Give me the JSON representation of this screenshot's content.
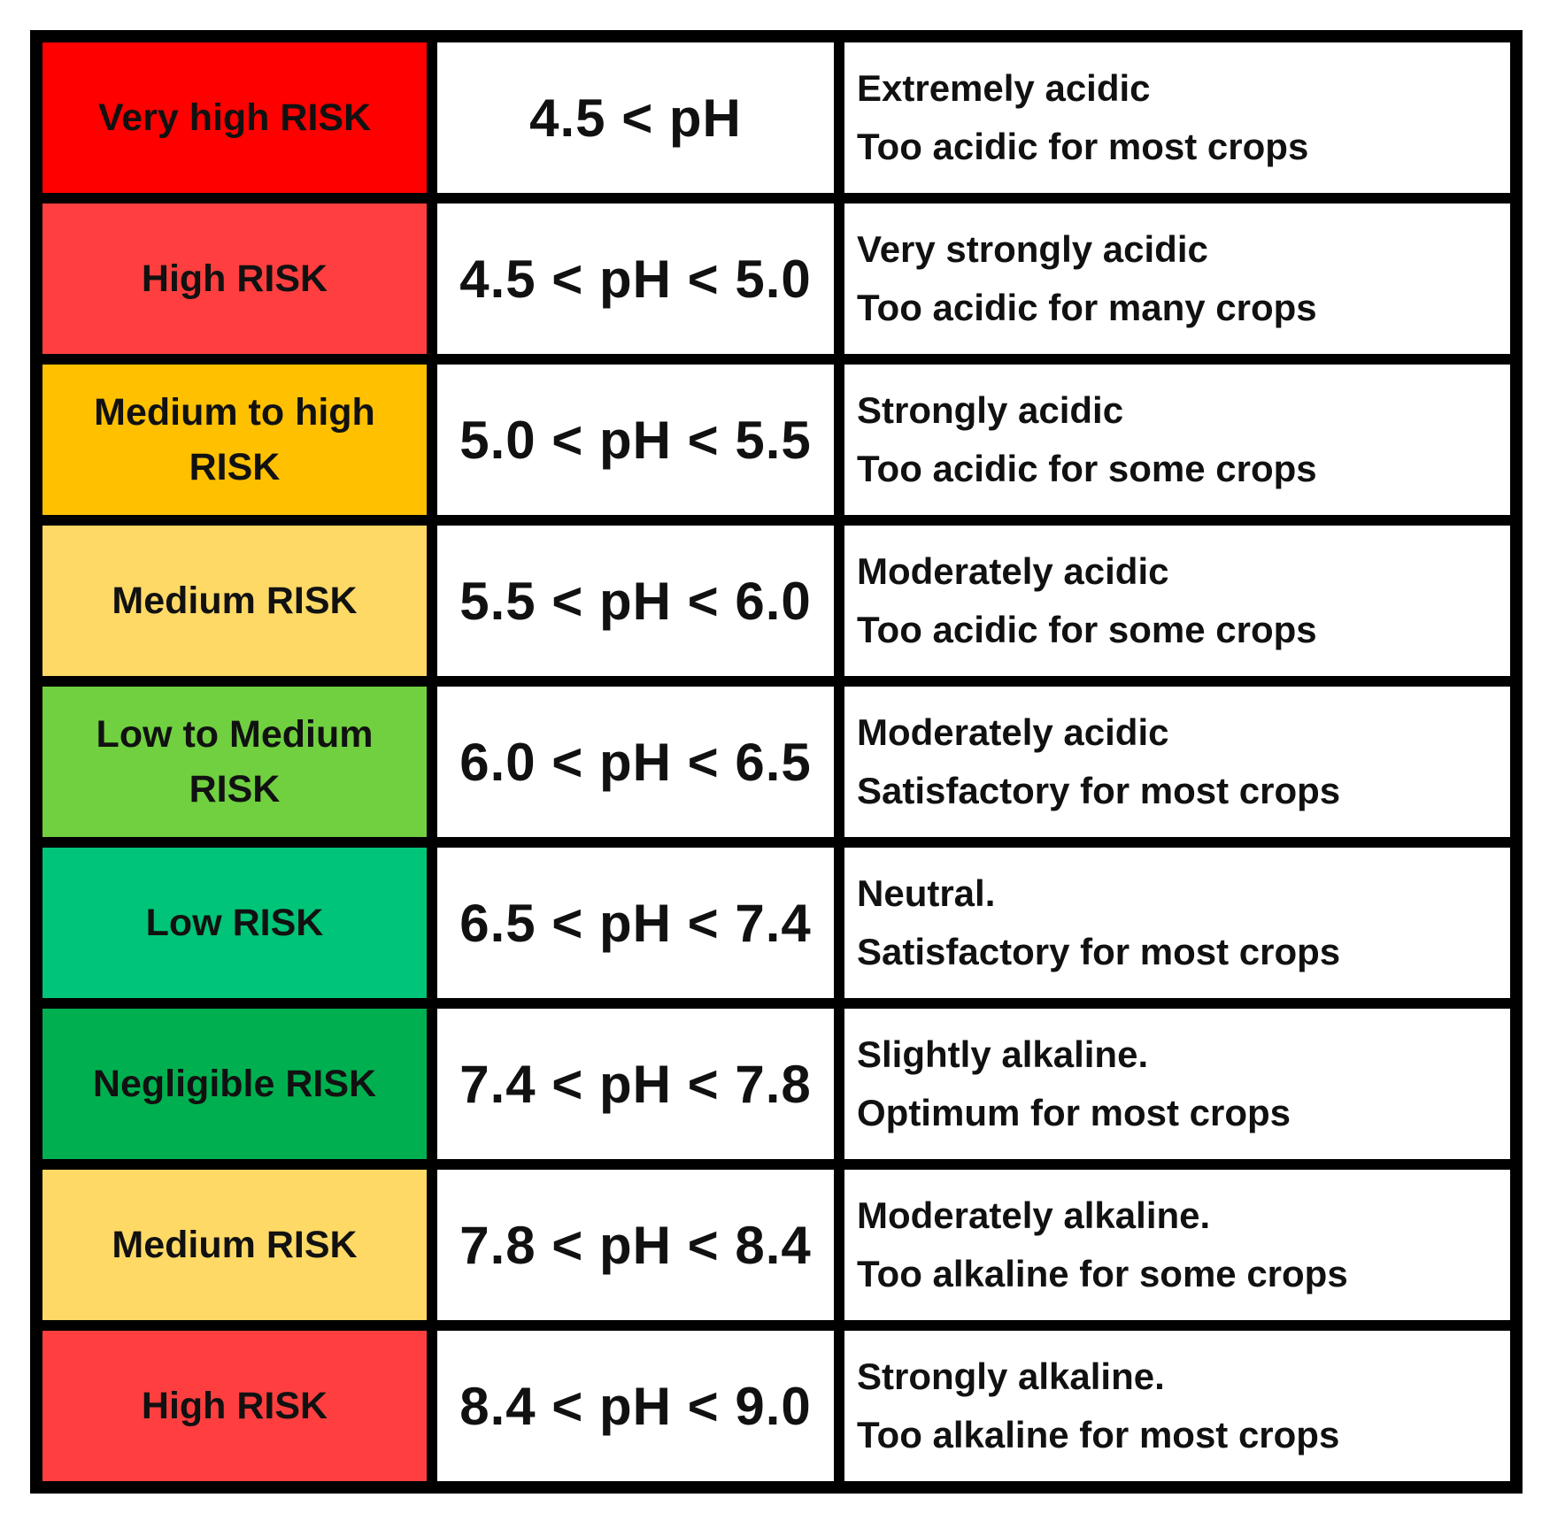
{
  "rows": [
    {
      "risk": "Very high RISK",
      "color": "#ff0000",
      "range": "4.5 < pH",
      "line1": "Extremely acidic",
      "line2": "Too acidic for most crops"
    },
    {
      "risk": "High RISK",
      "color": "#ff3f3f",
      "range": "4.5 < pH < 5.0",
      "line1": "Very strongly acidic",
      "line2": "Too acidic for many crops"
    },
    {
      "risk": "Medium to high RISK",
      "color": "#ffc000",
      "range": "5.0 < pH < 5.5",
      "line1": "Strongly acidic",
      "line2": "Too acidic for some crops"
    },
    {
      "risk": "Medium RISK",
      "color": "#ffd966",
      "range": "5.5 < pH < 6.0",
      "line1": "Moderately acidic",
      "line2": "Too acidic for some crops"
    },
    {
      "risk": "Low to Medium RISK",
      "color": "#70d040",
      "range": "6.0 < pH < 6.5",
      "line1": "Moderately acidic",
      "line2": "Satisfactory for most crops"
    },
    {
      "risk": "Low RISK",
      "color": "#00c478",
      "range": "6.5 < pH < 7.4",
      "line1": "Neutral.",
      "line2": "Satisfactory for most crops"
    },
    {
      "risk": "Negligible RISK",
      "color": "#00b050",
      "range": "7.4 < pH < 7.8",
      "line1": "Slightly alkaline.",
      "line2": "Optimum for most crops"
    },
    {
      "risk": "Medium RISK",
      "color": "#ffd966",
      "range": "7.8 < pH < 8.4",
      "line1": "Moderately alkaline.",
      "line2": "Too alkaline for some crops"
    },
    {
      "risk": "High RISK",
      "color": "#ff3f3f",
      "range": "8.4 < pH < 9.0",
      "line1": "Strongly alkaline.",
      "line2": "Too alkaline for most crops"
    }
  ]
}
